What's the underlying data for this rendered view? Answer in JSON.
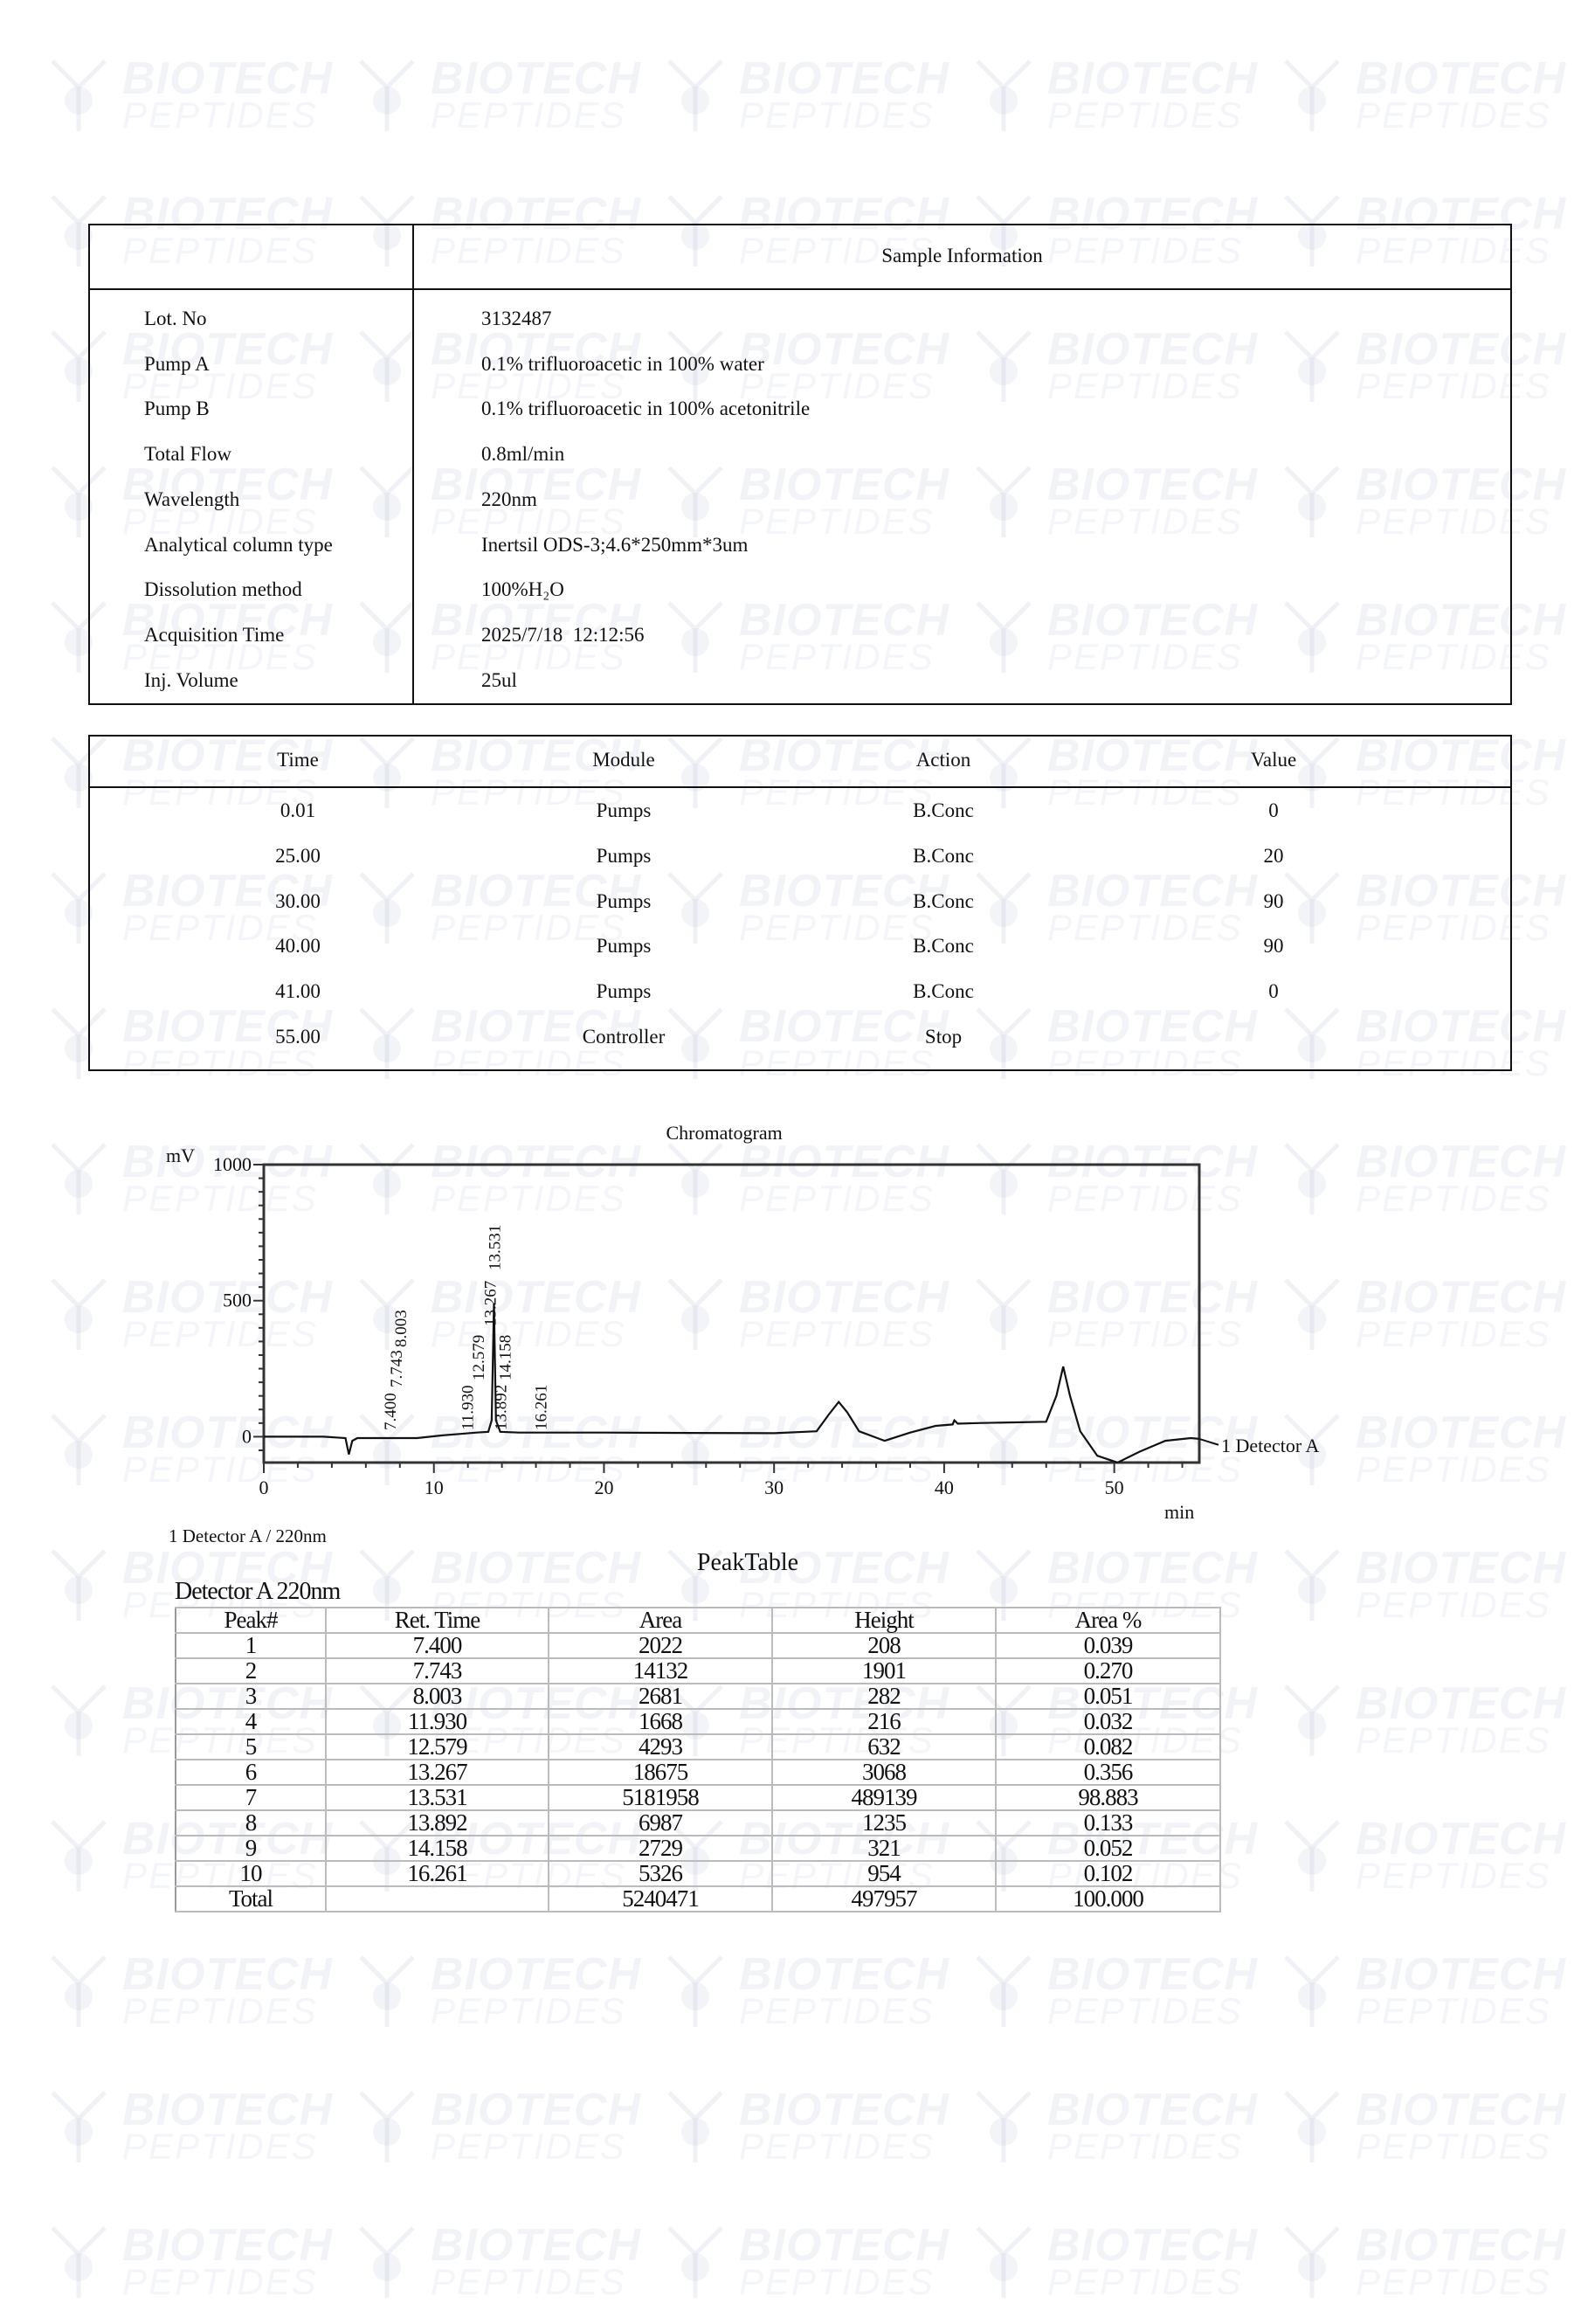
{
  "watermark": {
    "line1": "BIOTECH",
    "line2": "PEPTIDES"
  },
  "sample_info": {
    "title": "Sample Information",
    "rows": [
      {
        "label": "Lot. No",
        "value": "3132487"
      },
      {
        "label": "Pump A",
        "value": "0.1% trifluoroacetic in 100% water"
      },
      {
        "label": "Pump B",
        "value": "0.1% trifluoroacetic in 100% acetonitrile"
      },
      {
        "label": "Total Flow",
        "value": "0.8ml/min"
      },
      {
        "label": "Wavelength",
        "value": "220nm"
      },
      {
        "label": "Analytical column type",
        "value": "Inertsil ODS-3;4.6*250mm*3um"
      },
      {
        "label": "Dissolution method",
        "value": "100%H₂O"
      },
      {
        "label": "Acquisition Time",
        "value": "2025/7/18  12:12:56"
      },
      {
        "label": "Inj. Volume",
        "value": "25ul"
      }
    ]
  },
  "method_table": {
    "headers": [
      "Time",
      "Module",
      "Action",
      "Value"
    ],
    "rows": [
      [
        "0.01",
        "Pumps",
        "B.Conc",
        "0"
      ],
      [
        "25.00",
        "Pumps",
        "B.Conc",
        "20"
      ],
      [
        "30.00",
        "Pumps",
        "B.Conc",
        "90"
      ],
      [
        "40.00",
        "Pumps",
        "B.Conc",
        "90"
      ],
      [
        "41.00",
        "Pumps",
        "B.Conc",
        "0"
      ],
      [
        "55.00",
        "Controller",
        "Stop",
        ""
      ]
    ]
  },
  "chart_data": {
    "type": "line",
    "title": "Chromatogram",
    "ylabel": "mV",
    "xlabel": "min",
    "xlim": [
      0,
      55
    ],
    "ylim": [
      -95,
      1000
    ],
    "xticks": [
      "0",
      "10",
      "20",
      "30",
      "40",
      "50"
    ],
    "yticks": [
      "0",
      "500",
      "1000"
    ],
    "series_label": "1 Detector A",
    "footnote": "1 Detector A / 220nm",
    "grid": false,
    "trace": {
      "x": [
        0,
        3.5,
        4.8,
        5.0,
        5.2,
        5.5,
        7,
        9,
        10.5,
        11.5,
        12.5,
        13.2,
        13.4,
        13.531,
        13.65,
        13.9,
        15,
        20,
        25,
        30,
        32.5,
        33.2,
        33.8,
        34.3,
        35,
        36.5,
        38,
        39.5,
        40.5,
        40.6,
        40.8,
        42,
        46,
        46.6,
        47.0,
        47.4,
        48,
        49,
        50.2,
        51.5,
        53,
        54.5,
        55
      ],
      "y": [
        0,
        0,
        -5,
        -65,
        -15,
        -5,
        -5,
        -5,
        5,
        10,
        15,
        18,
        60,
        490,
        60,
        18,
        15,
        15,
        14,
        13,
        20,
        80,
        128,
        90,
        20,
        -15,
        15,
        40,
        45,
        60,
        48,
        50,
        55,
        150,
        258,
        150,
        20,
        -70,
        -95,
        -55,
        -15,
        -5,
        -8
      ]
    },
    "peak_labels": [
      "7.400",
      "7.743",
      "8.003",
      "11.930",
      "12.579",
      "13.267",
      "13.531",
      "13.892",
      "14.158",
      "16.261"
    ]
  },
  "peak_table": {
    "title": "PeakTable",
    "detector": "Detector A 220nm",
    "headers": [
      "Peak#",
      "Ret. Time",
      "Area",
      "Height",
      "Area %"
    ],
    "rows": [
      [
        "1",
        "7.400",
        "2022",
        "208",
        "0.039"
      ],
      [
        "2",
        "7.743",
        "14132",
        "1901",
        "0.270"
      ],
      [
        "3",
        "8.003",
        "2681",
        "282",
        "0.051"
      ],
      [
        "4",
        "11.930",
        "1668",
        "216",
        "0.032"
      ],
      [
        "5",
        "12.579",
        "4293",
        "632",
        "0.082"
      ],
      [
        "6",
        "13.267",
        "18675",
        "3068",
        "0.356"
      ],
      [
        "7",
        "13.531",
        "5181958",
        "489139",
        "98.883"
      ],
      [
        "8",
        "13.892",
        "6987",
        "1235",
        "0.133"
      ],
      [
        "9",
        "14.158",
        "2729",
        "321",
        "0.052"
      ],
      [
        "10",
        "16.261",
        "5326",
        "954",
        "0.102"
      ]
    ],
    "total": [
      "Total",
      "",
      "5240471",
      "497957",
      "100.000"
    ]
  }
}
